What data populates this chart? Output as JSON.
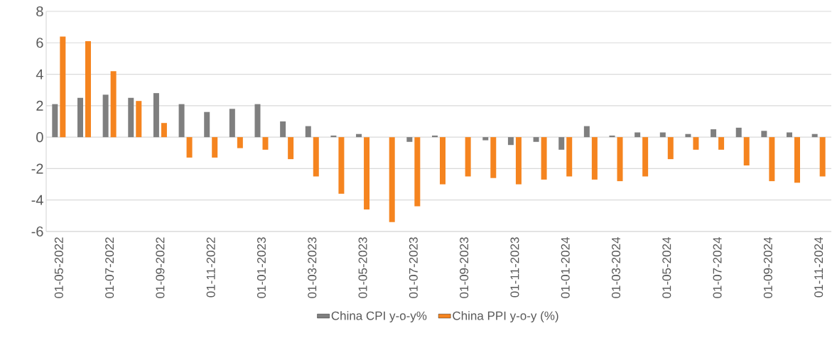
{
  "chart_data": {
    "type": "bar",
    "categories": [
      "01-05-2022",
      null,
      "01-07-2022",
      null,
      "01-09-2022",
      null,
      "01-11-2022",
      null,
      "01-01-2023",
      null,
      "01-03-2023",
      null,
      "01-05-2023",
      null,
      "01-07-2023",
      null,
      "01-09-2023",
      null,
      "01-11-2023",
      null,
      "01-01-2024",
      null,
      "01-03-2024",
      null,
      "01-05-2024",
      null,
      "01-07-2024",
      null,
      "01-09-2024",
      null,
      "01-11-2024"
    ],
    "series": [
      {
        "name": "China CPI y-o-y%",
        "color": "#7f7f7f",
        "values": [
          2.1,
          2.5,
          2.7,
          2.5,
          2.8,
          2.1,
          1.6,
          1.8,
          2.1,
          1.0,
          0.7,
          0.1,
          0.2,
          0.0,
          -0.3,
          0.1,
          0.0,
          -0.2,
          -0.5,
          -0.3,
          -0.8,
          0.7,
          0.1,
          0.3,
          0.3,
          0.2,
          0.5,
          0.6,
          0.4,
          0.3,
          0.2
        ]
      },
      {
        "name": "China PPI y-o-y (%)",
        "color": "#f5841f",
        "values": [
          6.4,
          6.1,
          4.2,
          2.3,
          0.9,
          -1.3,
          -1.3,
          -0.7,
          -0.8,
          -1.4,
          -2.5,
          -3.6,
          -4.6,
          -5.4,
          -4.4,
          -3.0,
          -2.5,
          -2.6,
          -3.0,
          -2.7,
          -2.5,
          -2.7,
          -2.8,
          -2.5,
          -1.4,
          -0.8,
          -0.8,
          -1.8,
          -2.8,
          -2.9,
          -2.5
        ]
      }
    ],
    "ylim": [
      -6,
      8
    ],
    "yticks": [
      -6,
      -4,
      -2,
      0,
      2,
      4,
      6,
      8
    ],
    "grid": "y",
    "legend": "bottom"
  }
}
